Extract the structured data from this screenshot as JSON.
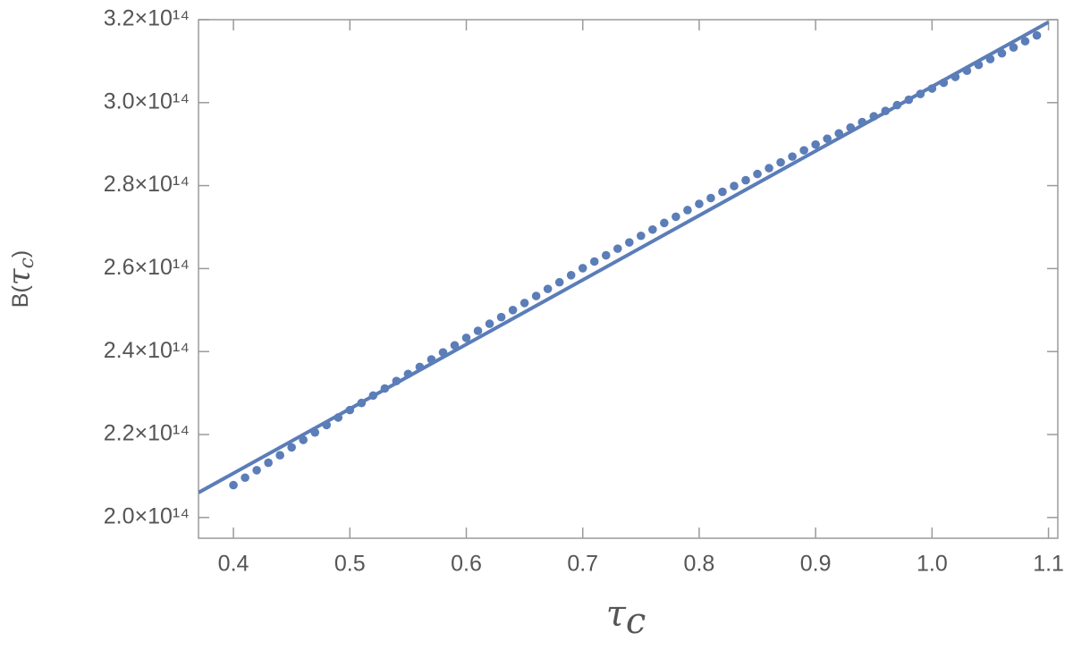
{
  "chart_data": {
    "type": "line_scatter",
    "x_label": {
      "symbol": "τ",
      "subscript": "c"
    },
    "y_label": {
      "prefix": "B(",
      "symbol": "τ",
      "subscript": "c",
      "suffix": ")"
    },
    "xlim": [
      0.37,
      1.108
    ],
    "ylim": [
      195000000000000.0,
      320000000000000.0
    ],
    "xticks": [
      0.4,
      0.5,
      0.6,
      0.7,
      0.8,
      0.9,
      {
        "value": 1.0,
        "label": "1.0"
      },
      1.1
    ],
    "yticks": [
      {
        "value": 200000000000000.0,
        "label": "2.0×10¹⁴"
      },
      {
        "value": 220000000000000.0,
        "label": "2.2×10¹⁴"
      },
      {
        "value": 240000000000000.0,
        "label": "2.4×10¹⁴"
      },
      {
        "value": 260000000000000.0,
        "label": "2.6×10¹⁴"
      },
      {
        "value": 280000000000000.0,
        "label": "2.8×10¹⁴"
      },
      {
        "value": 300000000000000.0,
        "label": "3.0×10¹⁴"
      },
      {
        "value": 320000000000000.0,
        "label": "3.2×10¹⁴"
      }
    ],
    "series": [
      {
        "type": "line",
        "color": "#5b7db8",
        "x": [
          0.37,
          1.1
        ],
        "values": [
          206000000000000.0,
          319400000000000.0
        ]
      },
      {
        "type": "scatter",
        "color": "#5b7db8",
        "x": [
          0.4,
          0.41,
          0.42,
          0.43,
          0.44,
          0.45,
          0.46,
          0.47,
          0.48,
          0.49,
          0.5,
          0.51,
          0.52,
          0.53,
          0.54,
          0.55,
          0.56,
          0.57,
          0.58,
          0.59,
          0.6,
          0.61,
          0.62,
          0.63,
          0.64,
          0.65,
          0.66,
          0.67,
          0.68,
          0.69,
          0.7,
          0.71,
          0.72,
          0.73,
          0.74,
          0.75,
          0.76,
          0.77,
          0.78,
          0.79,
          0.8,
          0.81,
          0.82,
          0.83,
          0.84,
          0.85,
          0.86,
          0.87,
          0.88,
          0.89,
          0.9,
          0.91,
          0.92,
          0.93,
          0.94,
          0.95,
          0.96,
          0.97,
          0.98,
          0.99,
          1.0,
          1.01,
          1.02,
          1.03,
          1.04,
          1.05,
          1.06,
          1.07,
          1.08,
          1.09
        ],
        "values": [
          207800000000000.0,
          209600000000000.0,
          211400000000000.0,
          213200000000000.0,
          215000000000000.0,
          216900000000000.0,
          218700000000000.0,
          220500000000000.0,
          222300000000000.0,
          224100000000000.0,
          225900000000000.0,
          227600000000000.0,
          229400000000000.0,
          231100000000000.0,
          232900000000000.0,
          234600000000000.0,
          236300000000000.0,
          238100000000000.0,
          239800000000000.0,
          241500000000000.0,
          243300000000000.0,
          245000000000000.0,
          246700000000000.0,
          248300000000000.0,
          250000000000000.0,
          251700000000000.0,
          253400000000000.0,
          255100000000000.0,
          256700000000000.0,
          258400000000000.0,
          260100000000000.0,
          261700000000000.0,
          263200000000000.0,
          264800000000000.0,
          266300000000000.0,
          267900000000000.0,
          269400000000000.0,
          271000000000000.0,
          272500000000000.0,
          274100000000000.0,
          275600000000000.0,
          277000000000000.0,
          278500000000000.0,
          279900000000000.0,
          281300000000000.0,
          282800000000000.0,
          284200000000000.0,
          285600000000000.0,
          287000000000000.0,
          288500000000000.0,
          289900000000000.0,
          291300000000000.0,
          292600000000000.0,
          294000000000000.0,
          295300000000000.0,
          296700000000000.0,
          298000000000000.0,
          299400000000000.0,
          300700000000000.0,
          302100000000000.0,
          303400000000000.0,
          304800000000000.0,
          306200000000000.0,
          307700000000000.0,
          309100000000000.0,
          310500000000000.0,
          311900000000000.0,
          313300000000000.0,
          314800000000000.0,
          316200000000000.0
        ]
      }
    ]
  }
}
